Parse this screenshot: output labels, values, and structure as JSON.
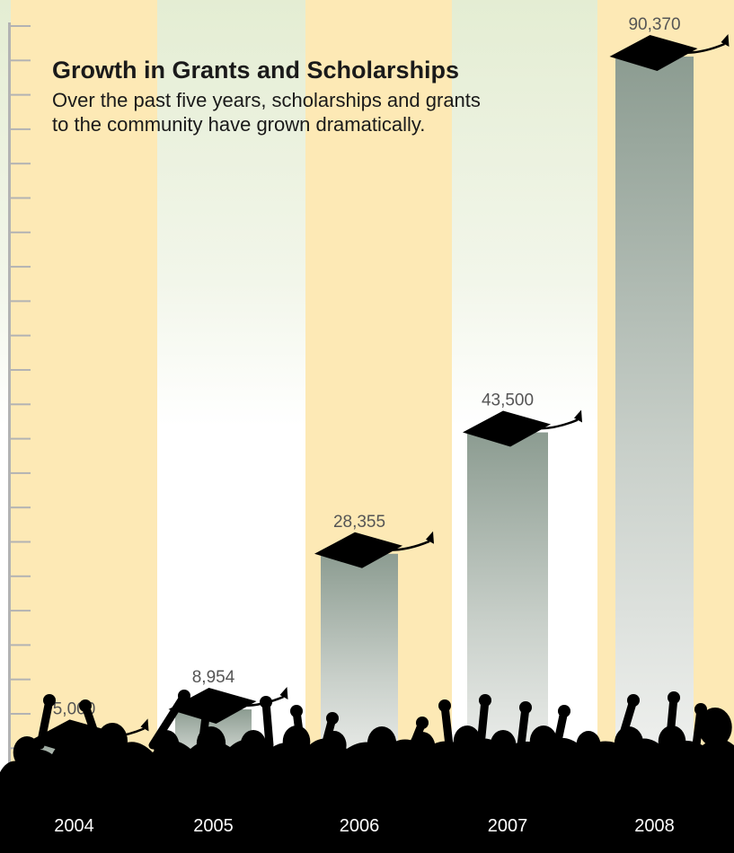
{
  "chart_data": {
    "type": "bar",
    "title": "Growth in Grants and Scholarships",
    "subtitle": "Over the past five years, scholarships and grants to the community have grown dramatically.",
    "categories": [
      "2004",
      "2005",
      "2006",
      "2007",
      "2008"
    ],
    "values": [
      5000,
      8954,
      28355,
      43500,
      90370
    ],
    "value_labels": [
      "5,000",
      "8,954",
      "28,355",
      "43,500",
      "90,370"
    ],
    "ylim": [
      0,
      90370
    ],
    "xlabel": "",
    "ylabel": "",
    "grid": false,
    "legend": "none"
  },
  "colors": {
    "column_band": "#fde9b5",
    "bar_top": "#8c9c91",
    "bar_bottom": "#f2f3f1",
    "background_top": "#e6efd6",
    "cap": "#000000",
    "silhouette": "#000000",
    "axis_ticks": "#b3b3b3",
    "value_label": "#555555",
    "year_label": "#ffffff"
  },
  "decorations": {
    "bar_cap": "graduation-cap-icon",
    "foreground": "cheering-crowd-silhouette"
  }
}
